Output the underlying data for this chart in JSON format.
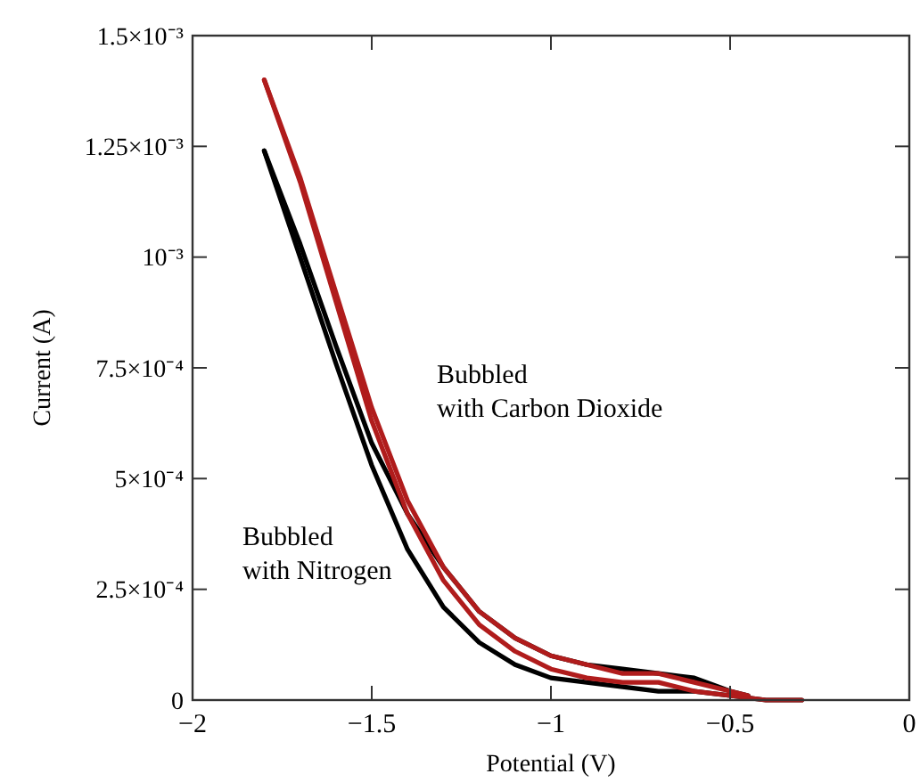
{
  "chart_data": {
    "type": "line",
    "xlabel": "Potential (V)",
    "ylabel": "Current (A)",
    "xlim": [
      -2,
      0
    ],
    "ylim": [
      0,
      0.0015
    ],
    "xticks": [
      {
        "value": -2,
        "label": "−2"
      },
      {
        "value": -1.5,
        "label": "−1.5"
      },
      {
        "value": -1,
        "label": "−1"
      },
      {
        "value": -0.5,
        "label": "−0.5"
      },
      0
    ],
    "yticks": [
      0,
      {
        "value": 0.00025,
        "label": "2.5×10⁻⁴"
      },
      {
        "value": 0.0005,
        "label": "5×10⁻⁴"
      },
      {
        "value": 0.00075,
        "label": "7.5×10⁻⁴"
      },
      {
        "value": 0.001,
        "label": "10⁻³"
      },
      {
        "value": 0.00125,
        "label": "1.25×10⁻³"
      },
      {
        "value": 0.0015,
        "label": "1.5×10⁻³"
      }
    ],
    "grid": false,
    "line_style": "solid",
    "marker": "none",
    "annotations": [
      "Bubbled\nwith Carbon Dioxide",
      "Bubbled\nwith Nitrogen"
    ],
    "series": [
      {
        "color": "#000000",
        "x": [
          -1.8,
          -1.7,
          -1.6,
          -1.5,
          -1.4,
          -1.3,
          -1.2,
          -1.1,
          -1.0,
          -0.9,
          -0.8,
          -0.7,
          -0.6,
          -0.5,
          -0.4,
          -0.3
        ],
        "values": [
          0.00124,
          0.001,
          0.00076,
          0.00053,
          0.00034,
          0.00021,
          0.00013,
          8e-05,
          5e-05,
          4e-05,
          3e-05,
          2e-05,
          2e-05,
          1e-05,
          0,
          0
        ]
      },
      {
        "color": "#000000",
        "x": [
          -1.8,
          -1.7,
          -1.6,
          -1.5,
          -1.4,
          -1.3,
          -1.2,
          -1.1,
          -1.0,
          -0.9,
          -0.8,
          -0.7,
          -0.6,
          -0.5,
          -0.45
        ],
        "values": [
          0.00124,
          0.00103,
          0.0008,
          0.00058,
          0.00042,
          0.0003,
          0.0002,
          0.00014,
          0.0001,
          8e-05,
          7e-05,
          6e-05,
          5e-05,
          2e-05,
          1e-05
        ]
      },
      {
        "color": "#b01c1c",
        "x": [
          -1.8,
          -1.7,
          -1.6,
          -1.5,
          -1.4,
          -1.3,
          -1.2,
          -1.1,
          -1.0,
          -0.9,
          -0.8,
          -0.7,
          -0.6,
          -0.5,
          -0.4,
          -0.3
        ],
        "values": [
          0.0014,
          0.00117,
          0.0009,
          0.00063,
          0.00042,
          0.00027,
          0.00017,
          0.00011,
          7e-05,
          5e-05,
          4e-05,
          4e-05,
          2e-05,
          1e-05,
          0,
          0
        ]
      },
      {
        "color": "#b01c1c",
        "x": [
          -1.8,
          -1.7,
          -1.6,
          -1.5,
          -1.4,
          -1.3,
          -1.2,
          -1.1,
          -1.0,
          -0.9,
          -0.8,
          -0.7,
          -0.6,
          -0.5,
          -0.45
        ],
        "values": [
          0.0014,
          0.00118,
          0.00092,
          0.00066,
          0.00045,
          0.0003,
          0.0002,
          0.00014,
          0.0001,
          8e-05,
          6e-05,
          6e-05,
          4e-05,
          2e-05,
          1e-05
        ]
      }
    ]
  }
}
